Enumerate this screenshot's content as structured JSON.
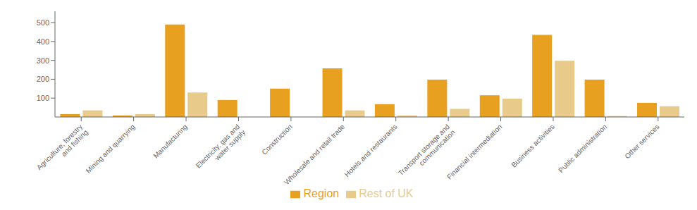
{
  "chart_data": {
    "type": "bar",
    "categories": [
      "Agriculture, forestry\nand fishing",
      "Mining and quarrying",
      "Manufacturing",
      "Electricity, gas and\nwater supply",
      "Construction",
      "Wholesale and retail trade",
      "Hotels and restaurants",
      "Transport storage and\ncommunication",
      "Financial intermediation",
      "Business activities",
      "Public administration",
      "Other services"
    ],
    "series": [
      {
        "name": "Region",
        "color": "#E8A020",
        "values": [
          15,
          8,
          490,
          90,
          150,
          258,
          68,
          198,
          115,
          435,
          198,
          75
        ]
      },
      {
        "name": "Rest of UK",
        "color": "#E8CB8A",
        "values": [
          35,
          15,
          130,
          0,
          0,
          35,
          8,
          43,
          97,
          298,
          5,
          57
        ]
      }
    ],
    "ylim": [
      0,
      560
    ],
    "yticks": [
      100,
      200,
      300,
      400,
      500
    ],
    "grid": false,
    "legend": "bottom"
  }
}
